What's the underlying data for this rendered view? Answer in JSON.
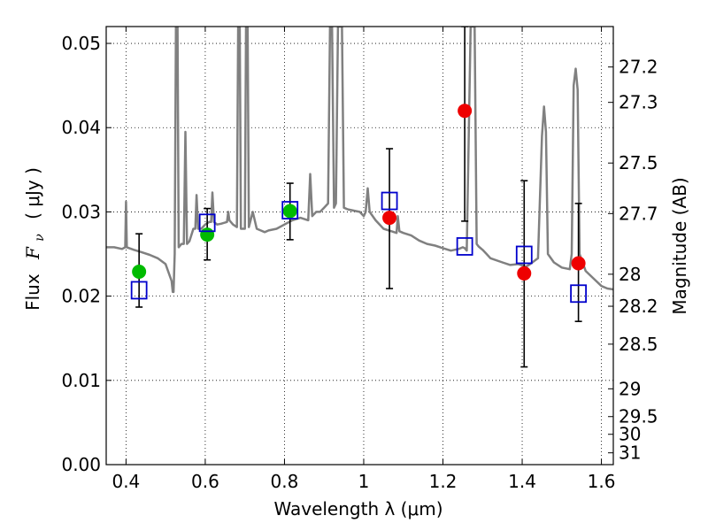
{
  "chart_data": {
    "type": "scatter",
    "xlabel": "Wavelength  λ (μm)",
    "ylabel_main": "Flux",
    "ylabel_symbol": "F",
    "ylabel_subscript": "ν",
    "ylabel_units": "( μJy )",
    "ylabel_right": "Magnitude (AB)",
    "xlim": [
      0.35,
      1.63
    ],
    "ylim": [
      0.0,
      0.052
    ],
    "x_ticks": [
      0.4,
      0.6,
      0.8,
      1.0,
      1.2,
      1.4,
      1.6
    ],
    "x_tick_labels": [
      "0.4",
      "0.6",
      "0.8",
      "1",
      "1.2",
      "1.4",
      "1.6"
    ],
    "y_ticks": [
      0.0,
      0.01,
      0.02,
      0.03,
      0.04,
      0.05
    ],
    "y_tick_labels": [
      "0.00",
      "0.01",
      "0.02",
      "0.03",
      "0.04",
      "0.05"
    ],
    "right_ticks": [
      {
        "label": "27.2",
        "flux": 0.0472
      },
      {
        "label": "27.3",
        "flux": 0.043
      },
      {
        "label": "27.5",
        "flux": 0.0358
      },
      {
        "label": "27.7",
        "flux": 0.0298
      },
      {
        "label": "28",
        "flux": 0.0226
      },
      {
        "label": "28.2",
        "flux": 0.0188
      },
      {
        "label": "28.5",
        "flux": 0.0143
      },
      {
        "label": "29",
        "flux": 0.009
      },
      {
        "label": "29.5",
        "flux": 0.0057
      },
      {
        "label": "30",
        "flux": 0.0036
      },
      {
        "label": "31",
        "flux": 0.0014
      }
    ],
    "grid": true,
    "colors": {
      "model": "#808080",
      "green": "#00bb00",
      "red": "#ee0000",
      "blue": "#0000cc",
      "errorbar": "#000000"
    },
    "series": [
      {
        "name": "model_spectrum",
        "type": "line",
        "points": [
          [
            0.35,
            0.0258
          ],
          [
            0.37,
            0.0258
          ],
          [
            0.39,
            0.0256
          ],
          [
            0.398,
            0.0258
          ],
          [
            0.4,
            0.0312
          ],
          [
            0.402,
            0.0258
          ],
          [
            0.42,
            0.0255
          ],
          [
            0.44,
            0.0252
          ],
          [
            0.46,
            0.0249
          ],
          [
            0.48,
            0.0245
          ],
          [
            0.5,
            0.0238
          ],
          [
            0.515,
            0.0218
          ],
          [
            0.518,
            0.0205
          ],
          [
            0.52,
            0.0205
          ],
          [
            0.523,
            0.025
          ],
          [
            0.526,
            0.052
          ],
          [
            0.53,
            0.052
          ],
          [
            0.533,
            0.0258
          ],
          [
            0.54,
            0.0262
          ],
          [
            0.546,
            0.0262
          ],
          [
            0.55,
            0.0395
          ],
          [
            0.554,
            0.0262
          ],
          [
            0.56,
            0.0265
          ],
          [
            0.57,
            0.028
          ],
          [
            0.575,
            0.028
          ],
          [
            0.578,
            0.032
          ],
          [
            0.582,
            0.028
          ],
          [
            0.59,
            0.028
          ],
          [
            0.6,
            0.0285
          ],
          [
            0.61,
            0.0288
          ],
          [
            0.615,
            0.0288
          ],
          [
            0.618,
            0.0323
          ],
          [
            0.622,
            0.0288
          ],
          [
            0.63,
            0.0285
          ],
          [
            0.64,
            0.0286
          ],
          [
            0.655,
            0.0288
          ],
          [
            0.658,
            0.03
          ],
          [
            0.661,
            0.029
          ],
          [
            0.67,
            0.0285
          ],
          [
            0.68,
            0.0282
          ],
          [
            0.683,
            0.052
          ],
          [
            0.687,
            0.052
          ],
          [
            0.69,
            0.028
          ],
          [
            0.7,
            0.028
          ],
          [
            0.703,
            0.052
          ],
          [
            0.707,
            0.052
          ],
          [
            0.71,
            0.0282
          ],
          [
            0.72,
            0.03
          ],
          [
            0.73,
            0.028
          ],
          [
            0.74,
            0.0278
          ],
          [
            0.75,
            0.0276
          ],
          [
            0.76,
            0.0278
          ],
          [
            0.78,
            0.028
          ],
          [
            0.8,
            0.0285
          ],
          [
            0.82,
            0.029
          ],
          [
            0.84,
            0.0293
          ],
          [
            0.86,
            0.029
          ],
          [
            0.865,
            0.0345
          ],
          [
            0.87,
            0.0295
          ],
          [
            0.88,
            0.03
          ],
          [
            0.89,
            0.03
          ],
          [
            0.9,
            0.0305
          ],
          [
            0.91,
            0.031
          ],
          [
            0.915,
            0.052
          ],
          [
            0.92,
            0.052
          ],
          [
            0.925,
            0.0305
          ],
          [
            0.93,
            0.031
          ],
          [
            0.935,
            0.052
          ],
          [
            0.945,
            0.052
          ],
          [
            0.95,
            0.0305
          ],
          [
            0.96,
            0.0303
          ],
          [
            0.97,
            0.0302
          ],
          [
            0.98,
            0.0301
          ],
          [
            0.99,
            0.03
          ],
          [
            1.0,
            0.0295
          ],
          [
            1.005,
            0.03
          ],
          [
            1.01,
            0.0328
          ],
          [
            1.015,
            0.03
          ],
          [
            1.03,
            0.029
          ],
          [
            1.05,
            0.028
          ],
          [
            1.07,
            0.0277
          ],
          [
            1.083,
            0.0275
          ],
          [
            1.086,
            0.0295
          ],
          [
            1.09,
            0.0277
          ],
          [
            1.1,
            0.0275
          ],
          [
            1.12,
            0.0272
          ],
          [
            1.14,
            0.0266
          ],
          [
            1.16,
            0.0262
          ],
          [
            1.18,
            0.026
          ],
          [
            1.2,
            0.0257
          ],
          [
            1.22,
            0.0254
          ],
          [
            1.24,
            0.0256
          ],
          [
            1.25,
            0.0258
          ],
          [
            1.255,
            0.0257
          ],
          [
            1.26,
            0.0254
          ],
          [
            1.27,
            0.052
          ],
          [
            1.28,
            0.052
          ],
          [
            1.285,
            0.0262
          ],
          [
            1.29,
            0.0259
          ],
          [
            1.3,
            0.0255
          ],
          [
            1.31,
            0.025
          ],
          [
            1.32,
            0.0245
          ],
          [
            1.35,
            0.024
          ],
          [
            1.37,
            0.0237
          ],
          [
            1.39,
            0.0238
          ],
          [
            1.41,
            0.0235
          ],
          [
            1.42,
            0.0238
          ],
          [
            1.44,
            0.0245
          ],
          [
            1.45,
            0.039
          ],
          [
            1.455,
            0.0425
          ],
          [
            1.46,
            0.0395
          ],
          [
            1.465,
            0.025
          ],
          [
            1.48,
            0.024
          ],
          [
            1.5,
            0.0234
          ],
          [
            1.52,
            0.0232
          ],
          [
            1.525,
            0.025
          ],
          [
            1.53,
            0.045
          ],
          [
            1.535,
            0.047
          ],
          [
            1.54,
            0.0445
          ],
          [
            1.545,
            0.025
          ],
          [
            1.56,
            0.023
          ],
          [
            1.58,
            0.0221
          ],
          [
            1.6,
            0.0212
          ],
          [
            1.615,
            0.0209
          ],
          [
            1.63,
            0.0208
          ]
        ]
      },
      {
        "name": "model_band_flux",
        "marker": "open-square",
        "points": [
          [
            0.433,
            0.0207
          ],
          [
            0.605,
            0.0287
          ],
          [
            0.814,
            0.0302
          ],
          [
            1.065,
            0.0313
          ],
          [
            1.255,
            0.0259
          ],
          [
            1.405,
            0.0249
          ],
          [
            1.542,
            0.0203
          ]
        ]
      },
      {
        "name": "observed_optical",
        "marker": "filled-circle",
        "color": "green",
        "points": [
          {
            "x": 0.433,
            "y": 0.0229,
            "yerr_low": 0.0187,
            "yerr_high": 0.0274
          },
          {
            "x": 0.605,
            "y": 0.0273,
            "yerr_low": 0.0243,
            "yerr_high": 0.0304
          },
          {
            "x": 0.814,
            "y": 0.0301,
            "yerr_low": 0.0267,
            "yerr_high": 0.0334
          }
        ]
      },
      {
        "name": "observed_nir",
        "marker": "filled-circle",
        "color": "red",
        "points": [
          {
            "x": 1.065,
            "y": 0.0293,
            "yerr_low": 0.0209,
            "yerr_high": 0.0375
          },
          {
            "x": 1.255,
            "y": 0.042,
            "yerr_low": 0.0289,
            "yerr_high": 0.052
          },
          {
            "x": 1.405,
            "y": 0.0227,
            "yerr_low": 0.0116,
            "yerr_high": 0.0337
          },
          {
            "x": 1.542,
            "y": 0.0239,
            "yerr_low": 0.017,
            "yerr_high": 0.031
          }
        ]
      }
    ]
  }
}
